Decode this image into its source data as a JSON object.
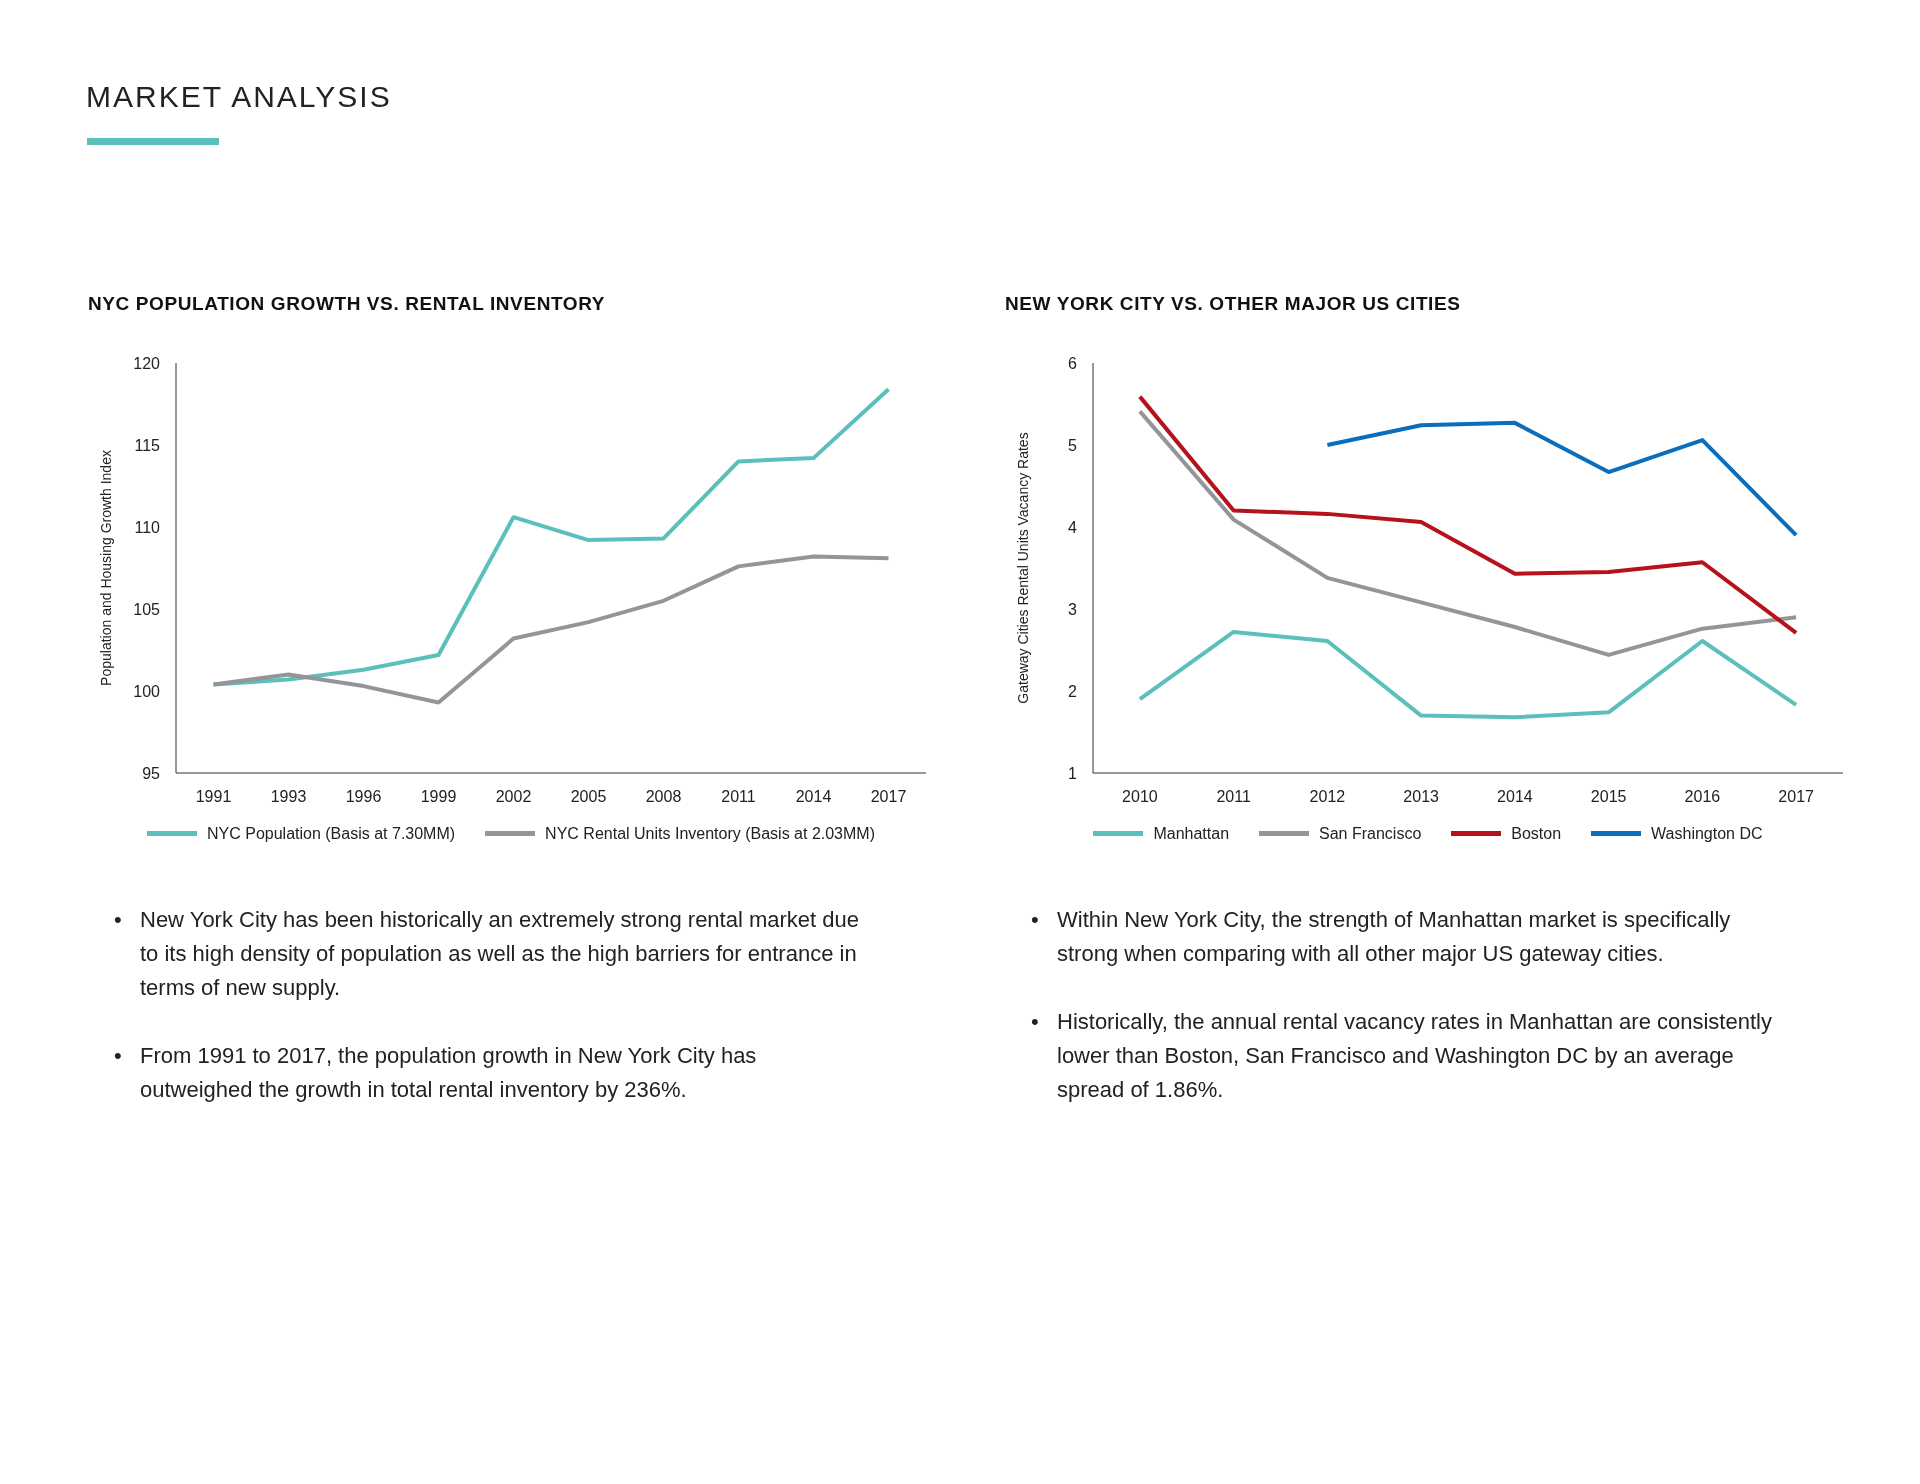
{
  "chart_data": [
    {
      "type": "line",
      "title": "NYC POPULATION GROWTH VS. RENTAL INVENTORY",
      "ylabel": "Population and Housing Growth Index",
      "categories": [
        "1991",
        "1993",
        "1996",
        "1999",
        "2002",
        "2005",
        "2008",
        "2011",
        "2014",
        "2017"
      ],
      "series": [
        {
          "name": "NYC Population (Basis at 7.30MM)",
          "color": "#5bbfbb",
          "values": [
            100.4,
            100.7,
            101.3,
            102.2,
            110.6,
            109.2,
            109.3,
            114.0,
            114.2,
            118.4
          ]
        },
        {
          "name": "NYC Rental Units Inventory (Basis at 2.03MM)",
          "color": "#939598",
          "values": [
            100.4,
            101.0,
            100.3,
            99.3,
            103.2,
            104.2,
            105.5,
            107.6,
            108.2,
            108.1
          ]
        }
      ],
      "ylim": [
        95,
        120
      ],
      "yticks": [
        95,
        100,
        105,
        110,
        115,
        120
      ],
      "grid": false,
      "legend": "bottom",
      "marker": "none",
      "line_style": "solid",
      "annotations": [
        "MARKET ANALYSIS",
        "• New York City has been historically an extremely strong rental market due to its high density of population as well as the high barriers for entrance in terms of new supply.",
        "• From 1991 to 2017, the population growth in New York City has outweighed the growth in total rental inventory by 236%."
      ]
    },
    {
      "type": "line",
      "title": "NEW YORK CITY VS. OTHER MAJOR US CITIES",
      "ylabel": "Gateway Cities Rental Units Vacancy Rates",
      "categories": [
        "2010",
        "2011",
        "2012",
        "2013",
        "2014",
        "2015",
        "2016",
        "2017"
      ],
      "series": [
        {
          "name": "Manhattan",
          "color": "#5bbfbb",
          "values": [
            1.9,
            2.72,
            2.61,
            1.7,
            1.68,
            1.74,
            2.61,
            1.83
          ]
        },
        {
          "name": "San Francisco",
          "color": "#939598",
          "values": [
            5.41,
            4.09,
            3.38,
            3.08,
            2.78,
            2.44,
            2.76,
            2.9
          ]
        },
        {
          "name": "Boston",
          "color": "#b5121b",
          "values": [
            5.59,
            4.2,
            4.16,
            4.06,
            3.43,
            3.45,
            3.57,
            2.71
          ]
        },
        {
          "name": "Washington DC",
          "color": "#0a6ebd",
          "values": [
            null,
            null,
            5.0,
            5.24,
            5.27,
            4.67,
            5.06,
            3.9
          ]
        }
      ],
      "ylim": [
        1,
        6
      ],
      "yticks": [
        1,
        2,
        3,
        4,
        5,
        6
      ],
      "grid": false,
      "legend": "bottom",
      "marker": "none",
      "line_style": "solid",
      "annotations": [
        "• Within New York City, the strength of Manhattan market is specifically strong when comparing with all other major US gateway cities.",
        "• Historically, the annual rental vacancy rates in Manhattan are consistently lower than Boston, San Francisco and Washington DC by an average spread of 1.86%."
      ]
    }
  ]
}
